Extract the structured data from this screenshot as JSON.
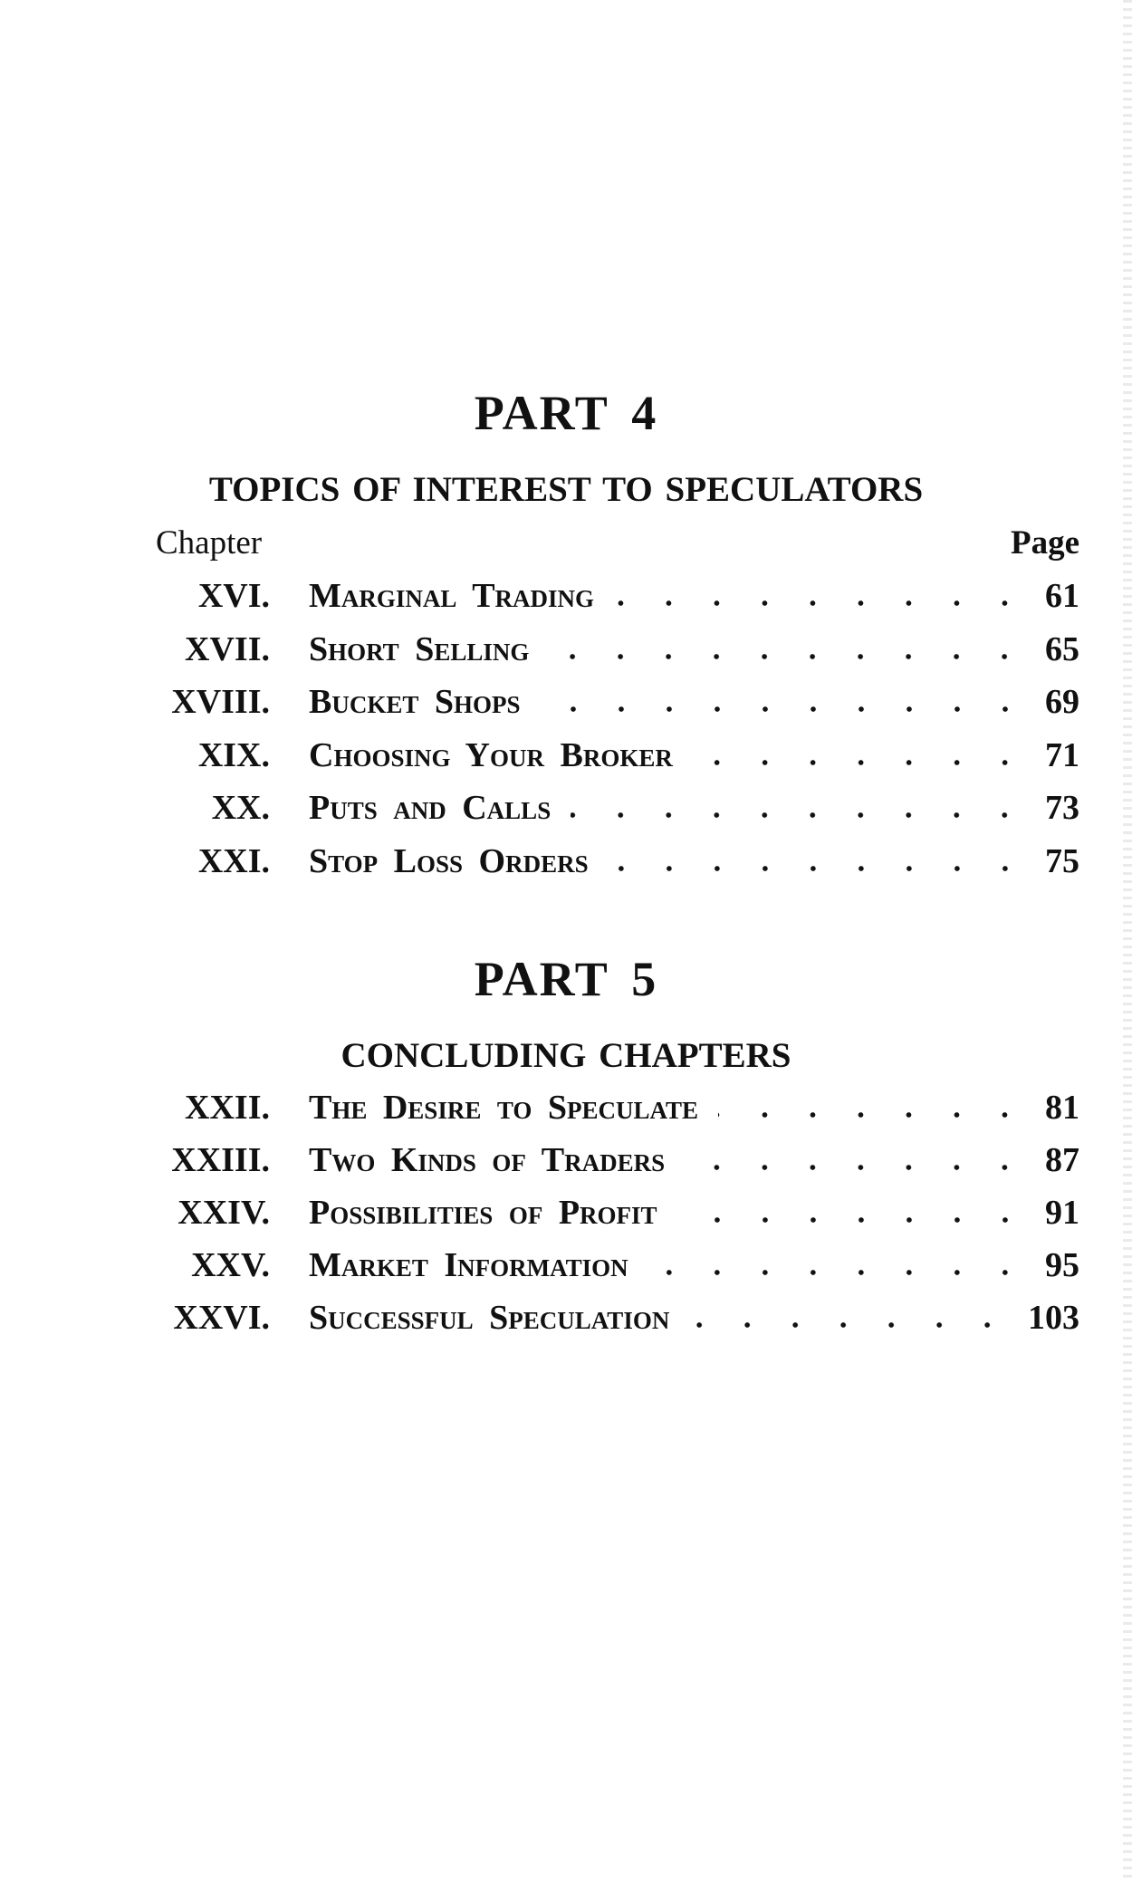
{
  "parts": [
    {
      "title": "PART 4",
      "subtitle": "TOPICS OF INTEREST TO SPECULATORS",
      "chapter_label": "Chapter",
      "page_label": "Page",
      "entries": [
        {
          "num": "XVI.",
          "title": "Marginal Trading",
          "page": "61"
        },
        {
          "num": "XVII.",
          "title": "Short Selling",
          "page": "65"
        },
        {
          "num": "XVIII.",
          "title": "Bucket Shops",
          "page": "69"
        },
        {
          "num": "XIX.",
          "title": "Choosing Your Broker",
          "page": "71"
        },
        {
          "num": "XX.",
          "title": "Puts and Calls",
          "page": "73"
        },
        {
          "num": "XXI.",
          "title": "Stop Loss Orders",
          "page": "75"
        }
      ]
    },
    {
      "title": "PART 5",
      "subtitle": "CONCLUDING CHAPTERS",
      "entries": [
        {
          "num": "XXII.",
          "title": "The Desire to Speculate",
          "page": "81"
        },
        {
          "num": "XXIII.",
          "title": "Two Kinds of Traders",
          "page": "87"
        },
        {
          "num": "XXIV.",
          "title": "Possibilities of Profit",
          "page": "91"
        },
        {
          "num": "XXV.",
          "title": "Market Information",
          "page": "95"
        },
        {
          "num": "XXVI.",
          "title": "Successful Speculation",
          "page": "103"
        }
      ]
    }
  ]
}
